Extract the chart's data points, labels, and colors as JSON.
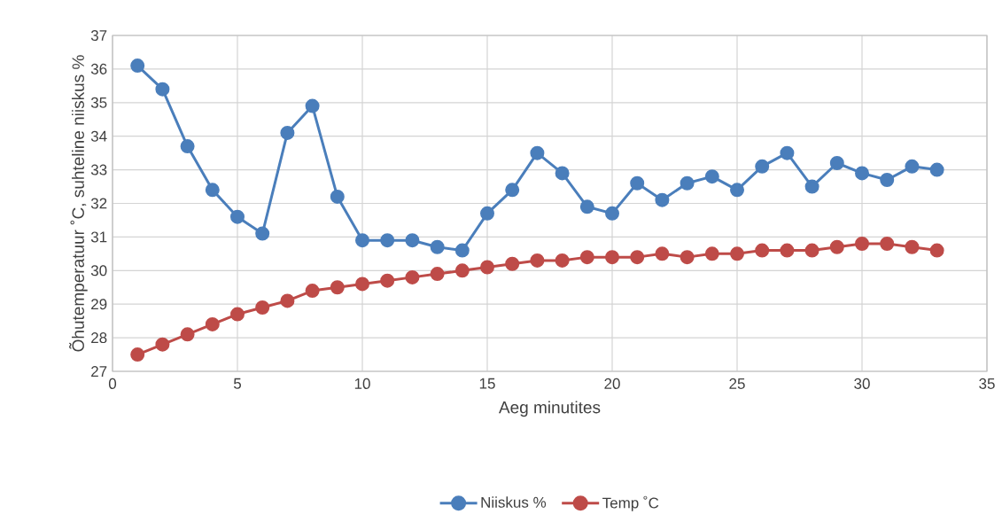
{
  "chart_data": {
    "type": "line",
    "xlabel": "Aeg minutites",
    "ylabel": "Õhutemperatuur ˚C, suhteline niiskus %",
    "x": [
      1,
      2,
      3,
      4,
      5,
      6,
      7,
      8,
      9,
      10,
      11,
      12,
      13,
      14,
      15,
      16,
      17,
      18,
      19,
      20,
      21,
      22,
      23,
      24,
      25,
      26,
      27,
      28,
      29,
      30,
      31,
      32,
      33
    ],
    "series": [
      {
        "name": "Niiskus %",
        "color": "#4a7ebb",
        "values": [
          36.1,
          35.4,
          33.7,
          32.4,
          31.6,
          31.1,
          34.1,
          34.9,
          32.2,
          30.9,
          30.9,
          30.9,
          30.7,
          30.6,
          31.7,
          32.4,
          33.5,
          32.9,
          31.9,
          31.7,
          32.6,
          32.1,
          32.6,
          32.8,
          32.4,
          33.1,
          33.5,
          32.5,
          33.2,
          32.9,
          32.7,
          33.1,
          33.0
        ]
      },
      {
        "name": "Temp ˚C",
        "color": "#be4b48",
        "values": [
          27.5,
          27.8,
          28.1,
          28.4,
          28.7,
          28.9,
          29.1,
          29.4,
          29.5,
          29.6,
          29.7,
          29.8,
          29.9,
          30.0,
          30.1,
          30.2,
          30.3,
          30.3,
          30.4,
          30.4,
          30.4,
          30.5,
          30.4,
          30.5,
          30.5,
          30.6,
          30.6,
          30.6,
          30.7,
          30.8,
          30.8,
          30.7,
          30.6
        ]
      }
    ],
    "xlim": [
      0,
      35
    ],
    "xticks": [
      0,
      5,
      10,
      15,
      20,
      25,
      30,
      35
    ],
    "ylim": [
      27,
      37
    ],
    "yticks": [
      27,
      28,
      29,
      30,
      31,
      32,
      33,
      34,
      35,
      36,
      37
    ],
    "grid": true,
    "legend": "bottom",
    "marker": "circle",
    "line_style": "solid"
  }
}
